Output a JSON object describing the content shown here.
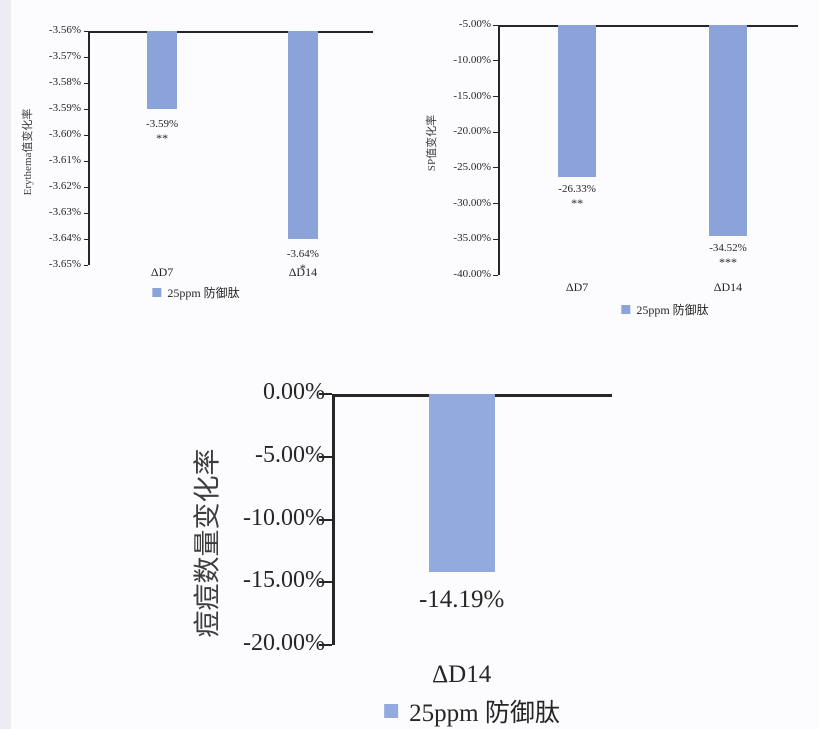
{
  "palette": {
    "background": "#fcfcfe",
    "edge_strip": "#ececf2",
    "axis": "#262626",
    "text": "#262626",
    "bar_blue_top": "#8ba3d9",
    "bar_blue_bottom": "#93aadf"
  },
  "chart_data": [
    {
      "type": "bar",
      "name": "erythema-change",
      "title": "",
      "xlabel": "",
      "ylabel": "Erythema值变化率",
      "categories": [
        "ΔD7",
        "ΔD14"
      ],
      "values": [
        -3.59,
        -3.64
      ],
      "value_labels": [
        "-3.59%",
        "-3.64%"
      ],
      "significance": [
        "**",
        "*"
      ],
      "ylim": [
        -3.65,
        -3.56
      ],
      "ytick_labels": [
        "-3.56%",
        "-3.57%",
        "-3.58%",
        "-3.59%",
        "-3.60%",
        "-3.61%",
        "-3.62%",
        "-3.63%",
        "-3.64%",
        "-3.65%"
      ],
      "grid": "off",
      "legend": "25ppm 防御肽",
      "legend_position": "bottom",
      "bar_color": "#8ba3d9"
    },
    {
      "type": "bar",
      "name": "sp-change",
      "title": "",
      "xlabel": "",
      "ylabel": "SP值变化率",
      "categories": [
        "ΔD7",
        "ΔD14"
      ],
      "values": [
        -26.33,
        -34.52
      ],
      "value_labels": [
        "-26.33%",
        "-34.52%"
      ],
      "significance": [
        "**",
        "***"
      ],
      "ylim": [
        -40,
        -5
      ],
      "ytick_labels": [
        "-5.00%",
        "-10.00%",
        "-15.00%",
        "-20.00%",
        "-25.00%",
        "-30.00%",
        "-35.00%",
        "-40.00%"
      ],
      "grid": "off",
      "legend": "25ppm 防御肽",
      "legend_position": "bottom",
      "bar_color": "#8ba3d9"
    },
    {
      "type": "bar",
      "name": "acne-count-change",
      "title": "",
      "xlabel": "",
      "ylabel": "痘痘数量变化率",
      "categories": [
        "ΔD14"
      ],
      "values": [
        -14.19
      ],
      "value_labels": [
        "-14.19%"
      ],
      "significance": [
        ""
      ],
      "ylim": [
        -20,
        0
      ],
      "ytick_labels": [
        "0.00%",
        "-5.00%",
        "-10.00%",
        "-15.00%",
        "-20.00%"
      ],
      "grid": "off",
      "legend": "25ppm 防御肽",
      "legend_position": "bottom",
      "bar_color": "#93aadf"
    }
  ]
}
